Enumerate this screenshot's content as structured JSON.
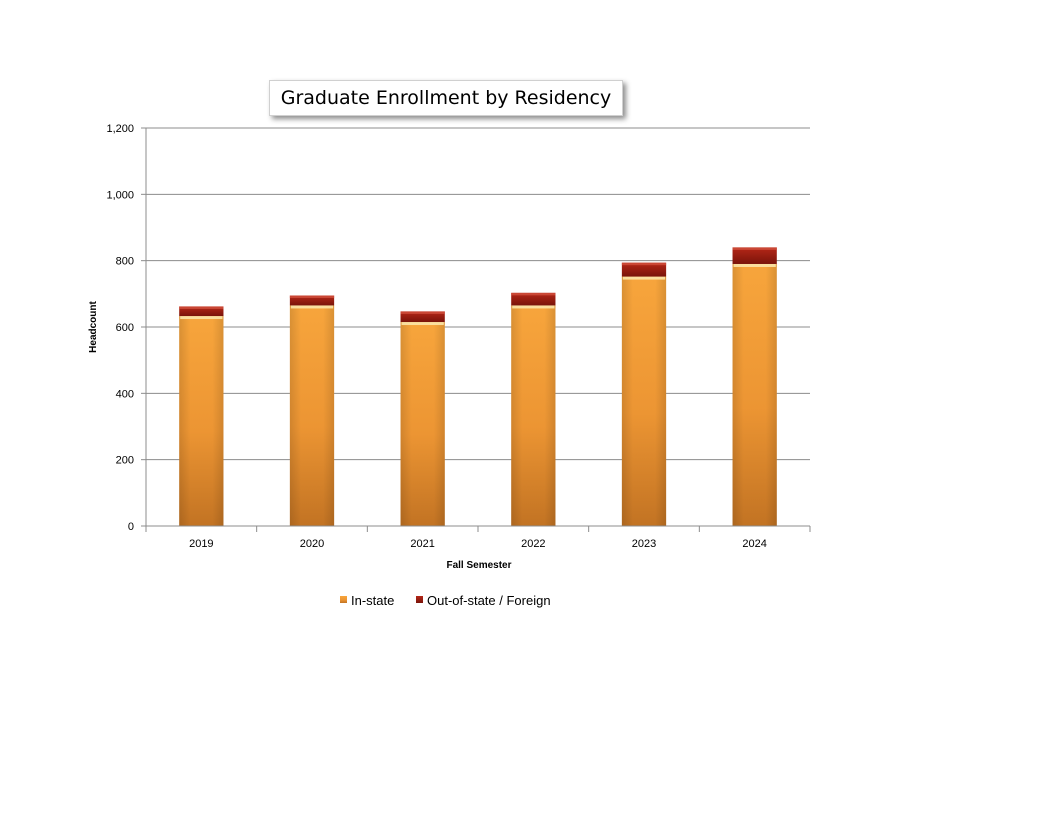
{
  "chart_data": {
    "type": "bar",
    "stacked": true,
    "title": "Graduate Enrollment by Residency",
    "xlabel": "Fall Semester",
    "ylabel": "Headcount",
    "categories": [
      "2019",
      "2020",
      "2021",
      "2022",
      "2023",
      "2024"
    ],
    "series": [
      {
        "name": "In-state",
        "values": [
          633,
          665,
          615,
          665,
          752,
          790
        ],
        "color": "#f5a23a"
      },
      {
        "name": "Out-of-state / Foreign",
        "values": [
          29,
          30,
          32,
          38,
          42,
          50
        ],
        "color": "#9b1b10"
      }
    ],
    "ylim": [
      0,
      1200
    ],
    "yticks": [
      0,
      200,
      400,
      600,
      800,
      1000,
      1200
    ],
    "ytick_labels": [
      "0",
      "200",
      "400",
      "600",
      "800",
      "1,000",
      "1,200"
    ],
    "grid": true,
    "legend_position": "bottom"
  }
}
